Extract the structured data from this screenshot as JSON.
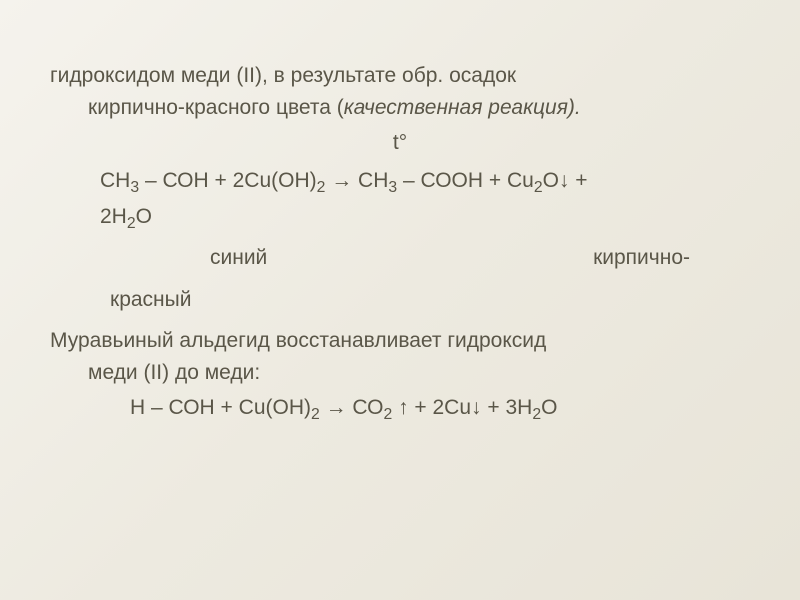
{
  "slide": {
    "intro_line1": "гидроксидом меди (II), в результате обр. осадок",
    "intro_line2": "кирпично-красного цвета (",
    "intro_italic": "качественная реакция).",
    "t_symbol": "t°",
    "eq1_part1": "СН",
    "eq1_s1": "3",
    "eq1_part2": " – СОН + 2Cu(OH)",
    "eq1_s2": "2",
    "eq1_part3": "  → СН",
    "eq1_s3": "3",
    "eq1_part4": " – СООН  + Cu",
    "eq1_s4": "2",
    "eq1_part5": "O↓ +",
    "eq1_line2a": "2H",
    "eq1_line2s": "2",
    "eq1_line2b": "O",
    "color_blue": "синий",
    "color_red1": "кирпично-",
    "color_red2": "красный",
    "para2_line1": "Муравьиный альдегид восстанавливает  гидроксид",
    "para2_line2": "меди (II)  до  меди:",
    "eq2_part1": "Н – СОН + Cu(OH)",
    "eq2_s1": "2",
    "eq2_part2": " → СО",
    "eq2_s2": "2",
    "eq2_part3": " ↑ + 2Cu↓ + 3H",
    "eq2_s3": "2",
    "eq2_part4": "O"
  },
  "style": {
    "text_color": "#5a5648",
    "bg_gradient_start": "#f5f3ed",
    "bg_gradient_end": "#e8e4d8",
    "font_size_body": 21
  }
}
